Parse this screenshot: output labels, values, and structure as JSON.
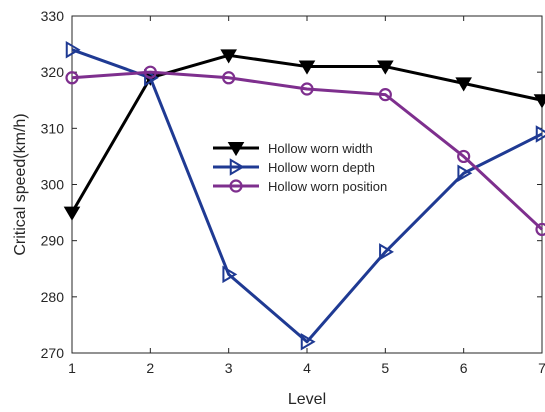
{
  "chart_data": {
    "type": "line",
    "xlabel": "Level",
    "ylabel": "Critical speed(km/h)",
    "x": [
      1,
      2,
      3,
      4,
      5,
      6,
      7
    ],
    "xlim": [
      1,
      7
    ],
    "ylim": [
      270,
      330
    ],
    "xticks": [
      "1",
      "2",
      "3",
      "4",
      "5",
      "6",
      "7"
    ],
    "yticks": [
      "270",
      "280",
      "290",
      "300",
      "310",
      "320",
      "330"
    ],
    "grid": false,
    "legend_position": "center-right",
    "series": [
      {
        "name": "Hollow worn width",
        "values": [
          295,
          319,
          323,
          321,
          321,
          318,
          315
        ],
        "color": "#000000",
        "marker": "triangle-down"
      },
      {
        "name": "Hollow worn depth",
        "values": [
          324,
          319,
          284,
          272,
          288,
          302,
          309
        ],
        "color": "#1f3a93",
        "marker": "triangle-right"
      },
      {
        "name": "Hollow worn position",
        "values": [
          319,
          320,
          319,
          317,
          316,
          305,
          292
        ],
        "color": "#7e2f8e",
        "marker": "circle"
      }
    ]
  }
}
